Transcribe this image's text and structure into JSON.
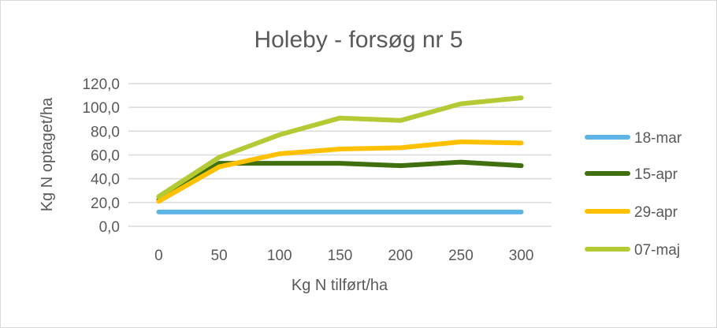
{
  "chart_data": {
    "type": "line",
    "title": "Holeby - forsøg nr 5",
    "xlabel": "Kg N tilført/ha",
    "ylabel": "Kg N optaget/ha",
    "categories": [
      "0",
      "50",
      "100",
      "150",
      "200",
      "250",
      "300"
    ],
    "y_ticks": [
      "0,0",
      "20,0",
      "40,0",
      "60,0",
      "80,0",
      "100,0",
      "120,0"
    ],
    "ylim": [
      0,
      120
    ],
    "grid": true,
    "legend_position": "right",
    "series": [
      {
        "name": "18-mar",
        "color": "#5fb4e6",
        "values": [
          12,
          12,
          12,
          12,
          12,
          12,
          12
        ]
      },
      {
        "name": "15-apr",
        "color": "#3f6f0f",
        "values": [
          22,
          53,
          53,
          53,
          51,
          54,
          51
        ]
      },
      {
        "name": "29-apr",
        "color": "#ffc000",
        "values": [
          21,
          50,
          61,
          65,
          66,
          71,
          70
        ]
      },
      {
        "name": "07-maj",
        "color": "#b5c935",
        "values": [
          25,
          58,
          77,
          91,
          89,
          103,
          108
        ]
      }
    ]
  }
}
